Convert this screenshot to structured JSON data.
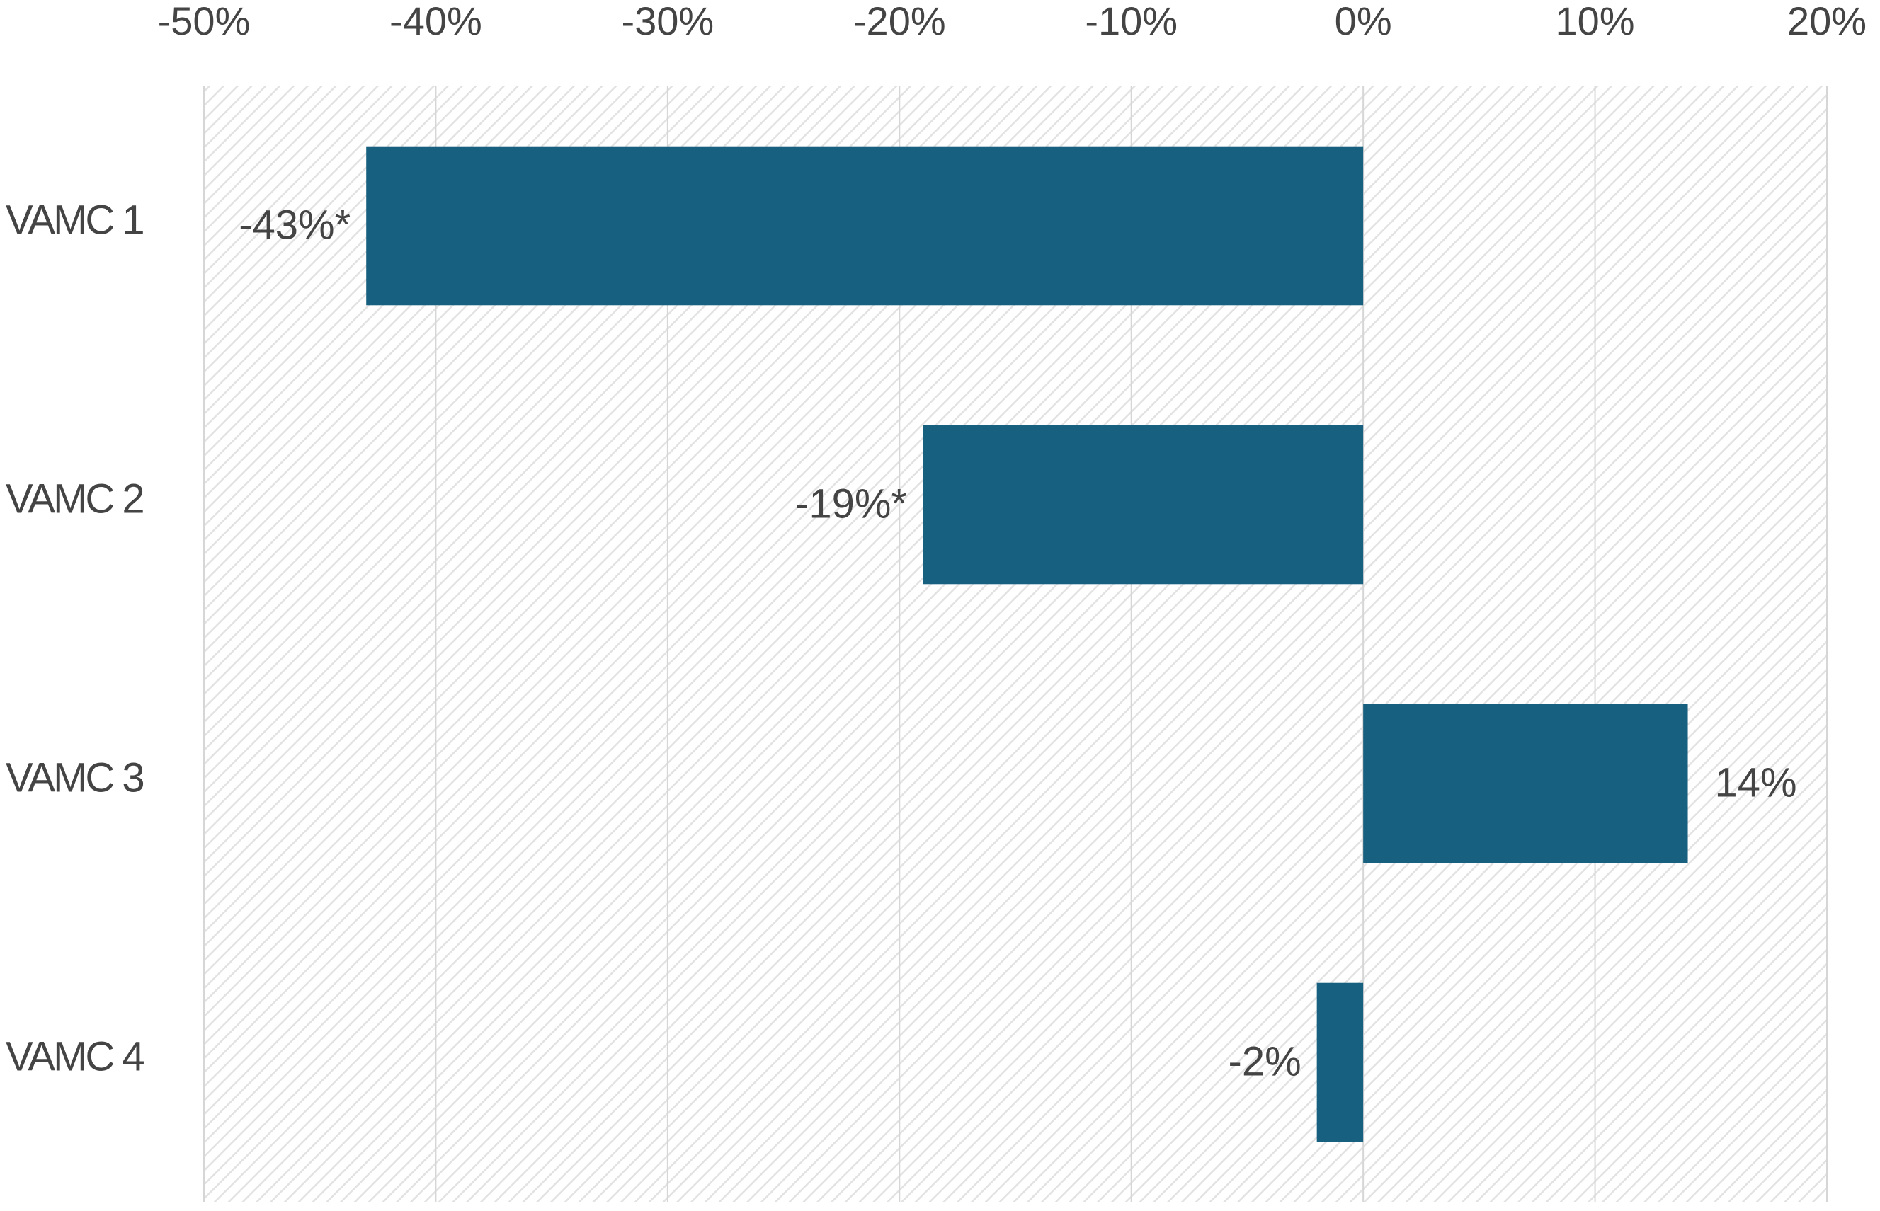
{
  "chart_data": {
    "type": "barh",
    "categories": [
      "VAMC 1",
      "VAMC 2",
      "VAMC 3",
      "VAMC 4"
    ],
    "values": [
      -43,
      -19,
      14,
      -2
    ],
    "value_labels": [
      "-43%*",
      "-19%*",
      "14%",
      "-2%"
    ],
    "color": "#18607f",
    "xlim": [
      -50,
      20
    ],
    "xticks": [
      {
        "value": -50,
        "label": "-50%"
      },
      {
        "value": -40,
        "label": "-40%"
      },
      {
        "value": -30,
        "label": "-30%"
      },
      {
        "value": -20,
        "label": "-20%"
      },
      {
        "value": -10,
        "label": "-10%"
      },
      {
        "value": 0,
        "label": "0%"
      },
      {
        "value": 10,
        "label": "10%"
      },
      {
        "value": 20,
        "label": "20%"
      }
    ],
    "grid": true
  }
}
